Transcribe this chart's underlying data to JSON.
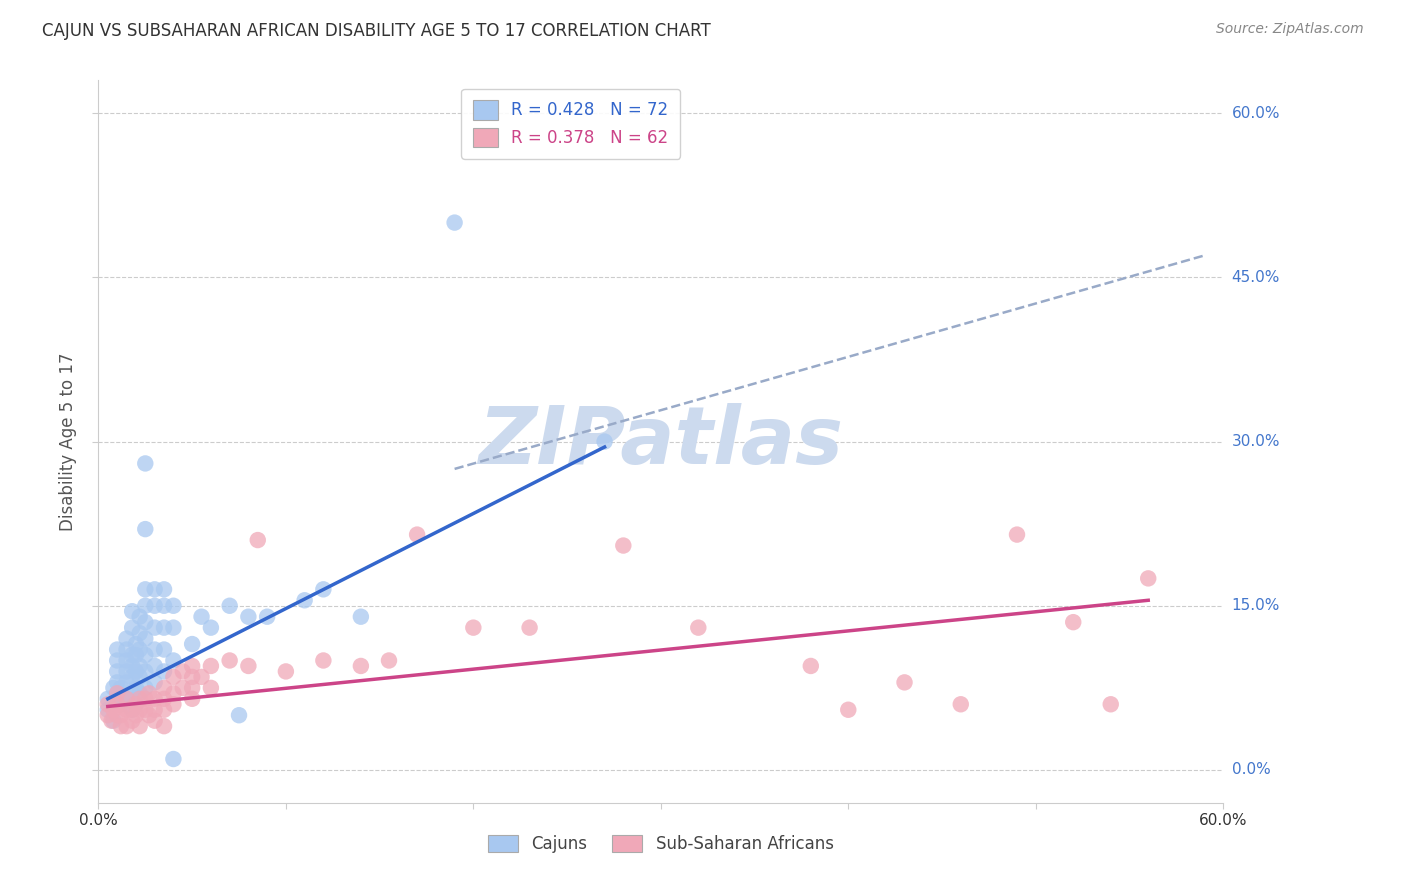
{
  "title": "CAJUN VS SUBSAHARAN AFRICAN DISABILITY AGE 5 TO 17 CORRELATION CHART",
  "source": "Source: ZipAtlas.com",
  "ylabel": "Disability Age 5 to 17",
  "xmin": 0.0,
  "xmax": 0.6,
  "ymin": -0.03,
  "ymax": 0.63,
  "ytick_labels": [
    "0.0%",
    "15.0%",
    "30.0%",
    "45.0%",
    "60.0%"
  ],
  "ytick_values": [
    0.0,
    0.15,
    0.3,
    0.45,
    0.6
  ],
  "xtick_values": [
    0.0,
    0.1,
    0.2,
    0.3,
    0.4,
    0.5,
    0.6
  ],
  "legend_cajun_r": "0.428",
  "legend_cajun_n": "72",
  "legend_subsaharan_r": "0.378",
  "legend_subsaharan_n": "62",
  "cajun_color": "#a8c8f0",
  "cajun_line_color": "#3366cc",
  "subsaharan_color": "#f0a8b8",
  "subsaharan_line_color": "#cc4488",
  "dashed_line_color": "#99aac8",
  "watermark": "ZIPatlas",
  "watermark_color": "#ccdaee",
  "background_color": "#ffffff",
  "grid_color": "#cccccc",
  "right_label_color": "#4477cc",
  "title_color": "#333333",
  "source_color": "#888888",
  "ylabel_color": "#555555",
  "cajun_scatter": [
    [
      0.005,
      0.055
    ],
    [
      0.005,
      0.065
    ],
    [
      0.008,
      0.045
    ],
    [
      0.008,
      0.075
    ],
    [
      0.01,
      0.06
    ],
    [
      0.01,
      0.07
    ],
    [
      0.01,
      0.08
    ],
    [
      0.01,
      0.09
    ],
    [
      0.01,
      0.1
    ],
    [
      0.01,
      0.11
    ],
    [
      0.012,
      0.06
    ],
    [
      0.012,
      0.075
    ],
    [
      0.015,
      0.065
    ],
    [
      0.015,
      0.08
    ],
    [
      0.015,
      0.09
    ],
    [
      0.015,
      0.1
    ],
    [
      0.015,
      0.11
    ],
    [
      0.015,
      0.12
    ],
    [
      0.018,
      0.055
    ],
    [
      0.018,
      0.07
    ],
    [
      0.018,
      0.085
    ],
    [
      0.018,
      0.095
    ],
    [
      0.018,
      0.105
    ],
    [
      0.018,
      0.13
    ],
    [
      0.018,
      0.145
    ],
    [
      0.02,
      0.06
    ],
    [
      0.02,
      0.075
    ],
    [
      0.02,
      0.09
    ],
    [
      0.02,
      0.105
    ],
    [
      0.02,
      0.115
    ],
    [
      0.022,
      0.07
    ],
    [
      0.022,
      0.085
    ],
    [
      0.022,
      0.095
    ],
    [
      0.022,
      0.11
    ],
    [
      0.022,
      0.125
    ],
    [
      0.022,
      0.14
    ],
    [
      0.025,
      0.075
    ],
    [
      0.025,
      0.09
    ],
    [
      0.025,
      0.105
    ],
    [
      0.025,
      0.12
    ],
    [
      0.025,
      0.135
    ],
    [
      0.025,
      0.15
    ],
    [
      0.025,
      0.165
    ],
    [
      0.025,
      0.22
    ],
    [
      0.025,
      0.28
    ],
    [
      0.03,
      0.08
    ],
    [
      0.03,
      0.095
    ],
    [
      0.03,
      0.11
    ],
    [
      0.03,
      0.13
    ],
    [
      0.03,
      0.15
    ],
    [
      0.03,
      0.165
    ],
    [
      0.035,
      0.09
    ],
    [
      0.035,
      0.11
    ],
    [
      0.035,
      0.13
    ],
    [
      0.035,
      0.15
    ],
    [
      0.035,
      0.165
    ],
    [
      0.04,
      0.1
    ],
    [
      0.04,
      0.13
    ],
    [
      0.04,
      0.15
    ],
    [
      0.04,
      0.01
    ],
    [
      0.05,
      0.115
    ],
    [
      0.055,
      0.14
    ],
    [
      0.06,
      0.13
    ],
    [
      0.07,
      0.15
    ],
    [
      0.075,
      0.05
    ],
    [
      0.08,
      0.14
    ],
    [
      0.09,
      0.14
    ],
    [
      0.11,
      0.155
    ],
    [
      0.12,
      0.165
    ],
    [
      0.14,
      0.14
    ],
    [
      0.19,
      0.5
    ],
    [
      0.27,
      0.3
    ]
  ],
  "subsaharan_scatter": [
    [
      0.005,
      0.05
    ],
    [
      0.005,
      0.06
    ],
    [
      0.007,
      0.045
    ],
    [
      0.008,
      0.055
    ],
    [
      0.01,
      0.05
    ],
    [
      0.01,
      0.06
    ],
    [
      0.01,
      0.07
    ],
    [
      0.012,
      0.05
    ],
    [
      0.012,
      0.04
    ],
    [
      0.015,
      0.055
    ],
    [
      0.015,
      0.065
    ],
    [
      0.015,
      0.04
    ],
    [
      0.018,
      0.055
    ],
    [
      0.018,
      0.045
    ],
    [
      0.02,
      0.06
    ],
    [
      0.02,
      0.05
    ],
    [
      0.022,
      0.065
    ],
    [
      0.022,
      0.055
    ],
    [
      0.022,
      0.04
    ],
    [
      0.025,
      0.065
    ],
    [
      0.025,
      0.055
    ],
    [
      0.027,
      0.07
    ],
    [
      0.027,
      0.05
    ],
    [
      0.03,
      0.065
    ],
    [
      0.03,
      0.055
    ],
    [
      0.03,
      0.045
    ],
    [
      0.035,
      0.075
    ],
    [
      0.035,
      0.065
    ],
    [
      0.035,
      0.055
    ],
    [
      0.035,
      0.04
    ],
    [
      0.04,
      0.085
    ],
    [
      0.04,
      0.07
    ],
    [
      0.04,
      0.06
    ],
    [
      0.045,
      0.09
    ],
    [
      0.045,
      0.075
    ],
    [
      0.05,
      0.085
    ],
    [
      0.05,
      0.095
    ],
    [
      0.05,
      0.075
    ],
    [
      0.05,
      0.065
    ],
    [
      0.055,
      0.085
    ],
    [
      0.06,
      0.095
    ],
    [
      0.06,
      0.075
    ],
    [
      0.07,
      0.1
    ],
    [
      0.08,
      0.095
    ],
    [
      0.085,
      0.21
    ],
    [
      0.1,
      0.09
    ],
    [
      0.12,
      0.1
    ],
    [
      0.14,
      0.095
    ],
    [
      0.155,
      0.1
    ],
    [
      0.17,
      0.215
    ],
    [
      0.2,
      0.13
    ],
    [
      0.23,
      0.13
    ],
    [
      0.28,
      0.205
    ],
    [
      0.32,
      0.13
    ],
    [
      0.38,
      0.095
    ],
    [
      0.4,
      0.055
    ],
    [
      0.43,
      0.08
    ],
    [
      0.46,
      0.06
    ],
    [
      0.49,
      0.215
    ],
    [
      0.52,
      0.135
    ],
    [
      0.54,
      0.06
    ],
    [
      0.56,
      0.175
    ]
  ],
  "cajun_line_x": [
    0.005,
    0.27
  ],
  "cajun_line_y": [
    0.065,
    0.295
  ],
  "subsaharan_line_x": [
    0.005,
    0.56
  ],
  "subsaharan_line_y": [
    0.058,
    0.155
  ],
  "dashed_line_x": [
    0.19,
    0.59
  ],
  "dashed_line_y": [
    0.275,
    0.47
  ]
}
